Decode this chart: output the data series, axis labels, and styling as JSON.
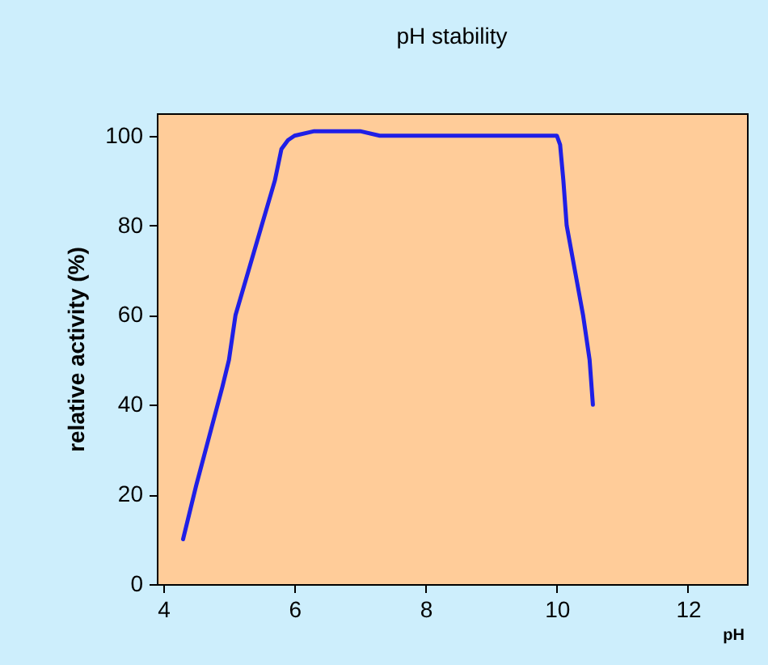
{
  "chart_data": {
    "type": "line",
    "title": "pH stability",
    "xlabel": "pH",
    "ylabel": "relative activity (%)",
    "x": [
      4.3,
      4.5,
      4.7,
      4.9,
      5.0,
      5.1,
      5.3,
      5.5,
      5.7,
      5.8,
      5.9,
      6.0,
      6.3,
      7.0,
      7.3,
      8.0,
      9.0,
      10.0,
      10.05,
      10.1,
      10.15,
      10.3,
      10.4,
      10.5,
      10.55
    ],
    "series": [
      {
        "color": "#1f1fe6",
        "values": [
          10,
          22,
          33,
          44,
          50,
          60,
          70,
          80,
          90,
          97,
          99,
          100,
          101,
          101,
          100,
          100,
          100,
          100,
          98,
          90,
          80,
          68,
          60,
          50,
          40
        ]
      }
    ],
    "xlim": [
      3.9,
      12.9
    ],
    "xticks": [
      4,
      6,
      8,
      10,
      12
    ],
    "ylim": [
      0,
      105
    ],
    "yticks": [
      0,
      20,
      40,
      60,
      80,
      100
    ],
    "grid": false,
    "marker": "none",
    "line_style": "solid"
  }
}
